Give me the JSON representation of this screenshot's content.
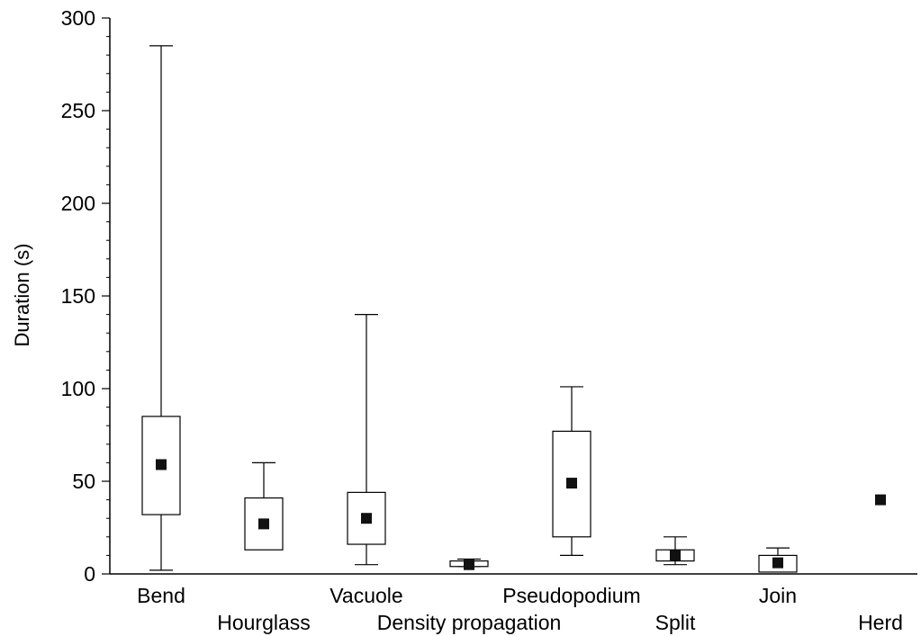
{
  "chart_data": {
    "type": "box",
    "ylabel": "Duration (s)",
    "ylim": [
      0,
      300
    ],
    "yticks": [
      "0",
      "50",
      "100",
      "150",
      "200",
      "250",
      "300"
    ],
    "ytick_values": [
      0,
      50,
      100,
      150,
      200,
      250,
      300
    ],
    "minor_tick_step": 10,
    "categories": [
      "Bend",
      "Hourglass",
      "Vacuole",
      "Density propagation",
      "Pseudopodium",
      "Split",
      "Join",
      "Herd"
    ],
    "label_row": [
      "top",
      "bottom",
      "top",
      "bottom",
      "top",
      "bottom",
      "top",
      "bottom"
    ],
    "boxes": [
      {
        "category": "Bend",
        "whisker_low": 2,
        "q1": 32,
        "q3": 85,
        "whisker_high": 285,
        "mean": 59
      },
      {
        "category": "Hourglass",
        "whisker_low": null,
        "q1": 13,
        "q3": 41,
        "whisker_high": 60,
        "mean": 27
      },
      {
        "category": "Vacuole",
        "whisker_low": 5,
        "q1": 16,
        "q3": 44,
        "whisker_high": 140,
        "mean": 30
      },
      {
        "category": "Density propagation",
        "whisker_low": 4,
        "q1": 4,
        "q3": 7,
        "whisker_high": 8,
        "mean": 5
      },
      {
        "category": "Pseudopodium",
        "whisker_low": 10,
        "q1": 20,
        "q3": 77,
        "whisker_high": 101,
        "mean": 49
      },
      {
        "category": "Split",
        "whisker_low": 5,
        "q1": 7,
        "q3": 13,
        "whisker_high": 20,
        "mean": 10
      },
      {
        "category": "Join",
        "whisker_low": null,
        "q1": 1,
        "q3": 10,
        "whisker_high": 14,
        "mean": 6
      },
      {
        "category": "Herd",
        "whisker_low": null,
        "q1": null,
        "q3": null,
        "whisker_high": null,
        "mean": 40
      }
    ],
    "grid": false
  }
}
